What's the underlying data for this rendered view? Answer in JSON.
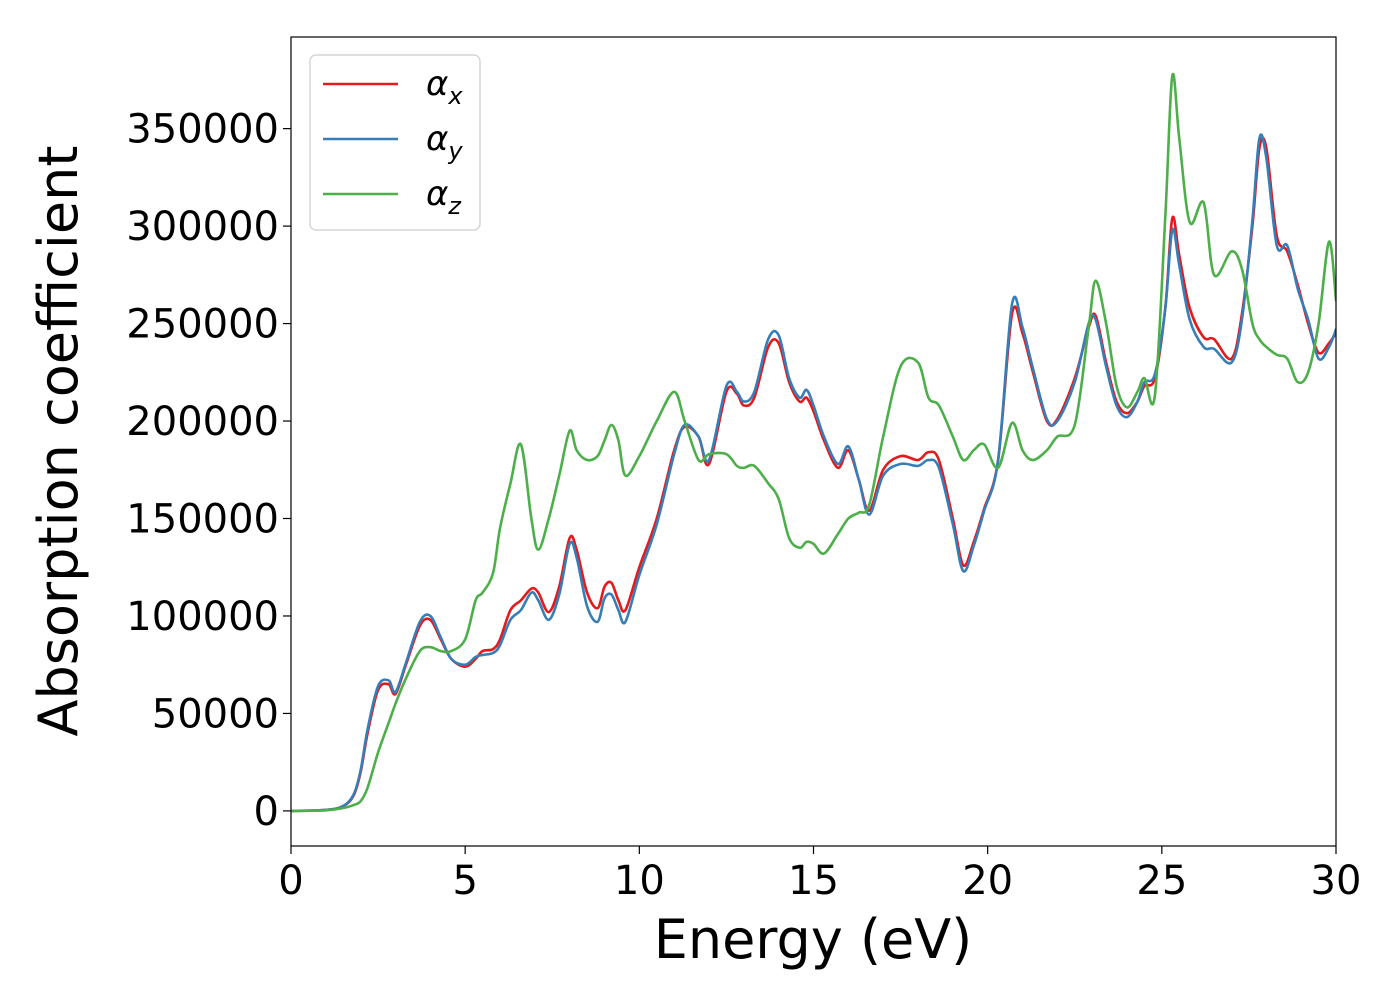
{
  "chart_data": {
    "type": "line",
    "title": "",
    "xlabel": "Energy (eV)",
    "ylabel": "Absorption coefficient",
    "xlim": [
      0,
      30
    ],
    "ylim": [
      -18000,
      397000
    ],
    "xticks": [
      0,
      5,
      10,
      15,
      20,
      25,
      30
    ],
    "xtick_labels": [
      "0",
      "5",
      "10",
      "15",
      "20",
      "25",
      "30"
    ],
    "yticks": [
      0,
      50000,
      100000,
      150000,
      200000,
      250000,
      300000,
      350000
    ],
    "ytick_labels": [
      "0",
      "50000",
      "100000",
      "150000",
      "200000",
      "250000",
      "300000",
      "350000"
    ],
    "grid": false,
    "legend_position": "top-left",
    "series": [
      {
        "name": "α",
        "subscript": "x",
        "color": "#e41a1c",
        "x": [
          0,
          1.0,
          1.5,
          1.8,
          2.0,
          2.2,
          2.5,
          2.8,
          3.0,
          3.3,
          3.7,
          4.0,
          4.3,
          4.6,
          5.0,
          5.3,
          5.5,
          5.8,
          6.0,
          6.3,
          6.6,
          6.9,
          7.1,
          7.4,
          7.7,
          8.0,
          8.2,
          8.5,
          8.8,
          9.0,
          9.2,
          9.4,
          9.6,
          10.0,
          10.5,
          11.0,
          11.3,
          11.7,
          12.0,
          12.5,
          12.8,
          13.0,
          13.3,
          13.7,
          14.0,
          14.3,
          14.6,
          14.8,
          15.0,
          15.3,
          15.7,
          16.0,
          16.3,
          16.6,
          17.0,
          17.5,
          18.0,
          18.3,
          18.6,
          19.0,
          19.3,
          19.6,
          19.9,
          20.3,
          20.7,
          21.0,
          21.3,
          21.7,
          22.0,
          22.5,
          22.9,
          23.1,
          23.4,
          23.7,
          24.0,
          24.3,
          24.5,
          24.8,
          25.1,
          25.3,
          25.5,
          25.8,
          26.2,
          26.5,
          27.0,
          27.3,
          27.6,
          27.8,
          28.0,
          28.3,
          28.6,
          28.9,
          29.2,
          29.5,
          29.8,
          30.0
        ],
        "y": [
          0,
          500,
          2500,
          8000,
          20000,
          40000,
          62000,
          65000,
          60000,
          75000,
          95000,
          98000,
          88000,
          78000,
          74000,
          78000,
          82000,
          83000,
          88000,
          103000,
          108000,
          114000,
          112000,
          102000,
          115000,
          140000,
          134000,
          112000,
          104000,
          115000,
          117000,
          108000,
          103000,
          125000,
          150000,
          185000,
          197000,
          192000,
          178000,
          215000,
          214000,
          208000,
          212000,
          238000,
          240000,
          220000,
          210000,
          212000,
          205000,
          190000,
          176000,
          185000,
          170000,
          154000,
          175000,
          182000,
          180000,
          184000,
          180000,
          150000,
          126000,
          138000,
          155000,
          180000,
          255000,
          245000,
          225000,
          200000,
          201000,
          222000,
          248000,
          254000,
          230000,
          210000,
          204000,
          210000,
          218000,
          222000,
          258000,
          304000,
          285000,
          258000,
          243000,
          242000,
          232000,
          255000,
          300000,
          340000,
          340000,
          295000,
          287000,
          270000,
          250000,
          235000,
          240000,
          245000
        ]
      },
      {
        "name": "α",
        "subscript": "y",
        "color": "#377eb8",
        "x": [
          0,
          1.0,
          1.5,
          1.8,
          2.0,
          2.2,
          2.5,
          2.8,
          3.0,
          3.3,
          3.7,
          4.0,
          4.3,
          4.6,
          5.0,
          5.3,
          5.5,
          5.8,
          6.0,
          6.3,
          6.6,
          6.9,
          7.1,
          7.4,
          7.7,
          8.0,
          8.2,
          8.5,
          8.8,
          9.0,
          9.2,
          9.4,
          9.6,
          10.0,
          10.5,
          11.0,
          11.3,
          11.7,
          12.0,
          12.5,
          12.8,
          13.0,
          13.3,
          13.7,
          14.0,
          14.3,
          14.6,
          14.8,
          15.0,
          15.3,
          15.7,
          16.0,
          16.3,
          16.6,
          17.0,
          17.5,
          18.0,
          18.3,
          18.6,
          19.0,
          19.3,
          19.6,
          19.9,
          20.3,
          20.7,
          21.0,
          21.3,
          21.7,
          22.0,
          22.5,
          22.9,
          23.1,
          23.4,
          23.7,
          24.0,
          24.3,
          24.5,
          24.8,
          25.1,
          25.3,
          25.5,
          25.8,
          26.2,
          26.5,
          27.0,
          27.3,
          27.6,
          27.8,
          28.0,
          28.3,
          28.6,
          28.9,
          29.2,
          29.5,
          29.8,
          30.0
        ],
        "y": [
          0,
          500,
          2500,
          8500,
          21000,
          42000,
          64000,
          67000,
          61000,
          76000,
          97000,
          100000,
          89000,
          78000,
          75000,
          79000,
          80000,
          81000,
          85000,
          98000,
          103000,
          112000,
          108000,
          98000,
          111000,
          137000,
          130000,
          105000,
          97000,
          109000,
          111000,
          103000,
          97000,
          121000,
          147000,
          183000,
          198000,
          192000,
          180000,
          218000,
          215000,
          210000,
          215000,
          242000,
          244000,
          222000,
          212000,
          216000,
          208000,
          192000,
          178000,
          187000,
          170000,
          152000,
          172000,
          178000,
          177000,
          180000,
          176000,
          147000,
          123000,
          136000,
          154000,
          180000,
          260000,
          248000,
          227000,
          201000,
          200000,
          220000,
          250000,
          252000,
          228000,
          208000,
          202000,
          210000,
          220000,
          224000,
          258000,
          298000,
          280000,
          252000,
          238000,
          237000,
          230000,
          252000,
          303000,
          345000,
          335000,
          290000,
          290000,
          268000,
          252000,
          232000,
          238000,
          247000
        ]
      },
      {
        "name": "α",
        "subscript": "z",
        "color": "#4daf4a",
        "x": [
          0,
          1.0,
          1.5,
          1.8,
          2.0,
          2.2,
          2.5,
          2.8,
          3.0,
          3.3,
          3.7,
          4.0,
          4.3,
          4.6,
          5.0,
          5.3,
          5.5,
          5.8,
          6.0,
          6.3,
          6.6,
          6.9,
          7.1,
          7.4,
          7.7,
          8.0,
          8.2,
          8.5,
          8.8,
          9.0,
          9.2,
          9.4,
          9.6,
          10.0,
          10.5,
          11.0,
          11.3,
          11.7,
          12.0,
          12.5,
          12.8,
          13.0,
          13.3,
          13.7,
          14.0,
          14.3,
          14.6,
          14.8,
          15.0,
          15.3,
          15.7,
          16.0,
          16.3,
          16.6,
          17.0,
          17.5,
          18.0,
          18.3,
          18.6,
          19.0,
          19.3,
          19.6,
          19.9,
          20.3,
          20.7,
          21.0,
          21.3,
          21.7,
          22.0,
          22.5,
          22.9,
          23.1,
          23.4,
          23.7,
          24.0,
          24.3,
          24.5,
          24.8,
          25.1,
          25.3,
          25.5,
          25.8,
          26.2,
          26.5,
          27.0,
          27.3,
          27.6,
          27.8,
          28.0,
          28.3,
          28.6,
          28.9,
          29.2,
          29.5,
          29.8,
          30.0
        ],
        "y": [
          0,
          300,
          1500,
          3000,
          5000,
          12000,
          30000,
          45000,
          55000,
          68000,
          82000,
          84000,
          82000,
          82000,
          88000,
          108000,
          112000,
          122000,
          145000,
          168000,
          188000,
          150000,
          134000,
          150000,
          172000,
          195000,
          185000,
          180000,
          182000,
          190000,
          198000,
          190000,
          172000,
          182000,
          200000,
          215000,
          200000,
          180000,
          183000,
          183000,
          177000,
          176000,
          177000,
          168000,
          160000,
          140000,
          135000,
          138000,
          137000,
          132000,
          142000,
          150000,
          153000,
          157000,
          192000,
          228000,
          230000,
          212000,
          208000,
          192000,
          180000,
          185000,
          188000,
          176000,
          199000,
          185000,
          180000,
          185000,
          192000,
          198000,
          248000,
          272000,
          250000,
          218000,
          207000,
          215000,
          222000,
          213000,
          305000,
          377000,
          345000,
          302000,
          312000,
          275000,
          287000,
          278000,
          250000,
          242000,
          238000,
          234000,
          232000,
          220000,
          225000,
          250000,
          292000,
          262000
        ]
      }
    ]
  }
}
